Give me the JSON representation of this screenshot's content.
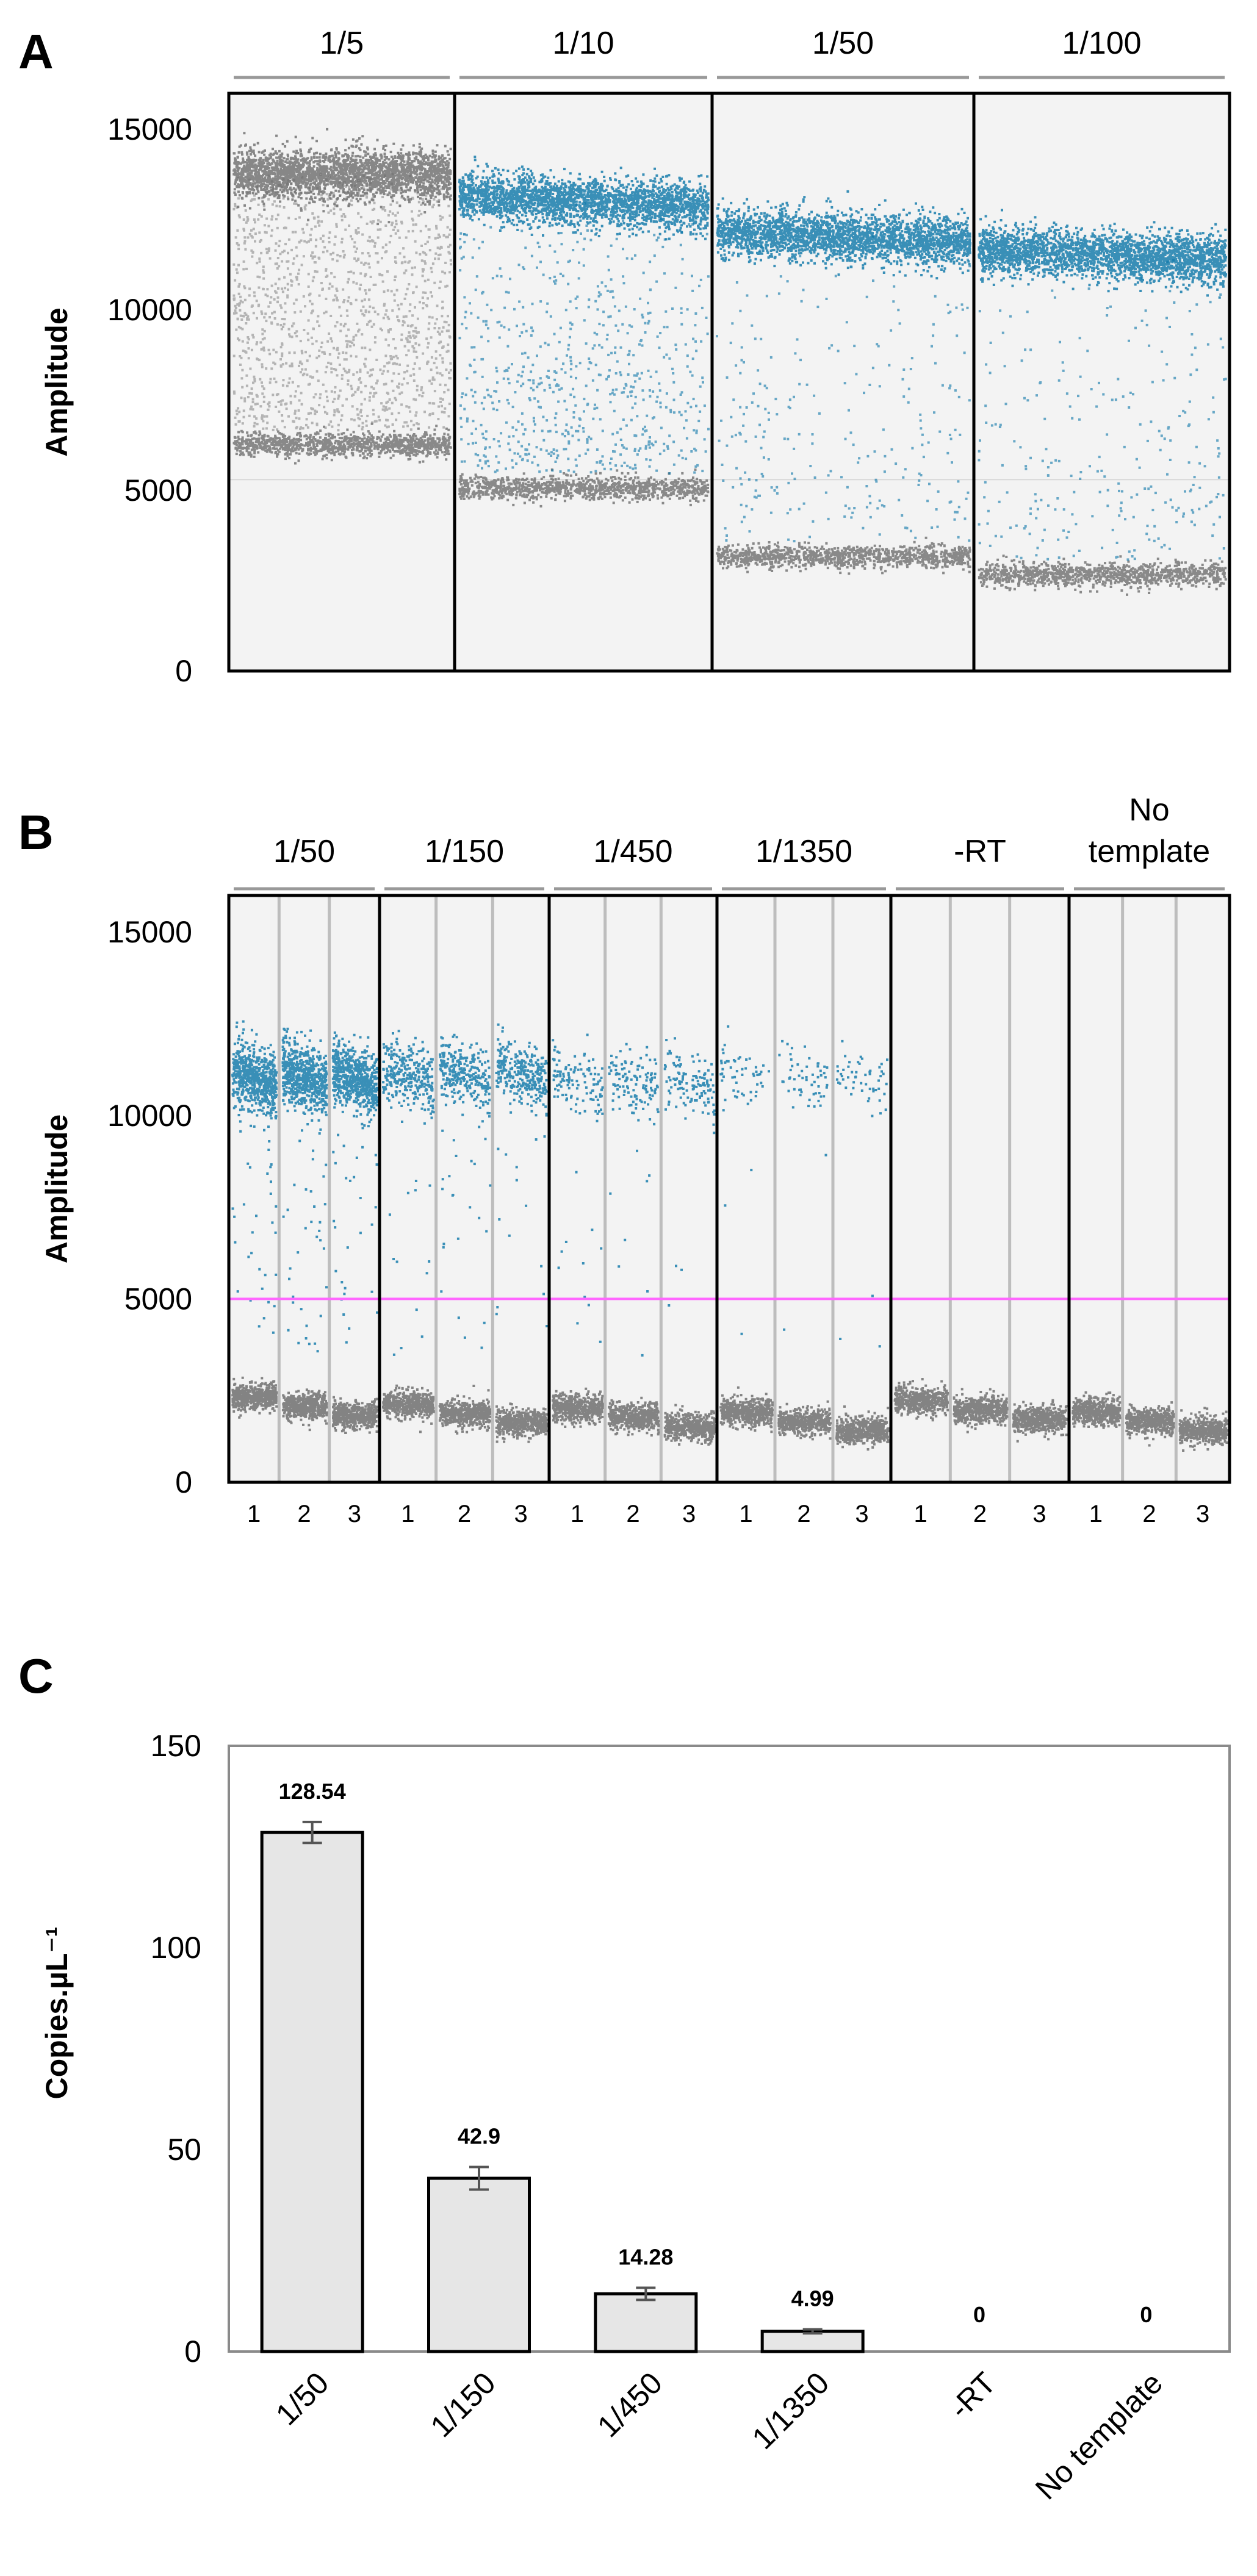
{
  "chart_data": [
    {
      "panel": "A",
      "type": "scatter",
      "title": "",
      "ylabel": "Amplitude",
      "xlabel": "",
      "ylim": [
        0,
        16000
      ],
      "yticks": [
        0,
        5000,
        10000,
        15000
      ],
      "groups": [
        {
          "label": "1/5",
          "wells": 1,
          "positive_band": 13800,
          "negative_band": 6300,
          "positive_color": "#6b6b6b",
          "rain": "heavy"
        },
        {
          "label": "1/10",
          "wells": 1,
          "positive_band": 13200,
          "negative_band": 5100,
          "positive_color": "#0a75a8",
          "rain": "medium"
        },
        {
          "label": "1/50",
          "wells": 1,
          "positive_band": 12200,
          "negative_band": 3200,
          "positive_color": "#0a75a8",
          "rain": "light"
        },
        {
          "label": "1/100",
          "wells": 1,
          "positive_band": 11700,
          "negative_band": 2700,
          "positive_color": "#0a75a8",
          "rain": "light"
        }
      ]
    },
    {
      "panel": "B",
      "type": "scatter",
      "title": "",
      "ylabel": "Amplitude",
      "xlabel": "",
      "ylim": [
        0,
        16000
      ],
      "yticks": [
        0,
        5000,
        10000,
        15000
      ],
      "threshold": 5000,
      "threshold_color": "#ff66ff",
      "groups": [
        {
          "label": "1/50",
          "wells": [
            "1",
            "2",
            "3"
          ],
          "positive_band": 11300,
          "negative_band": 2100,
          "density": 1.0
        },
        {
          "label": "1/150",
          "wells": [
            "1",
            "2",
            "3"
          ],
          "positive_band": 11400,
          "negative_band": 1900,
          "density": 0.45
        },
        {
          "label": "1/450",
          "wells": [
            "1",
            "2",
            "3"
          ],
          "positive_band": 11200,
          "negative_band": 1800,
          "density": 0.18
        },
        {
          "label": "1/1350",
          "wells": [
            "1",
            "2",
            "3"
          ],
          "positive_band": 11300,
          "negative_band": 1700,
          "density": 0.07
        },
        {
          "label": "-RT",
          "wells": [
            "1",
            "2",
            "3"
          ],
          "positive_band": null,
          "negative_band": 2000,
          "density": 0
        },
        {
          "label": "No template",
          "wells": [
            "1",
            "2",
            "3"
          ],
          "positive_band": null,
          "negative_band": 1700,
          "density": 0
        }
      ]
    },
    {
      "panel": "C",
      "type": "bar",
      "title": "",
      "ylabel": "Copies.µL⁻¹",
      "xlabel": "",
      "ylim": [
        0,
        150
      ],
      "yticks": [
        0,
        50,
        100,
        150
      ],
      "categories": [
        "1/50",
        "1/150",
        "1/450",
        "1/1350",
        "-RT",
        "No template"
      ],
      "values": [
        128.54,
        42.9,
        14.28,
        4.99,
        0,
        0
      ],
      "value_labels": [
        "128.54",
        "42.9",
        "14.28",
        "4.99",
        "0",
        "0"
      ],
      "errors": [
        2.6,
        2.8,
        1.5,
        0.5,
        0,
        0
      ],
      "bar_color": "#e6e6e6"
    }
  ],
  "panel_labels": {
    "a": "A",
    "b": "B",
    "c": "C"
  }
}
